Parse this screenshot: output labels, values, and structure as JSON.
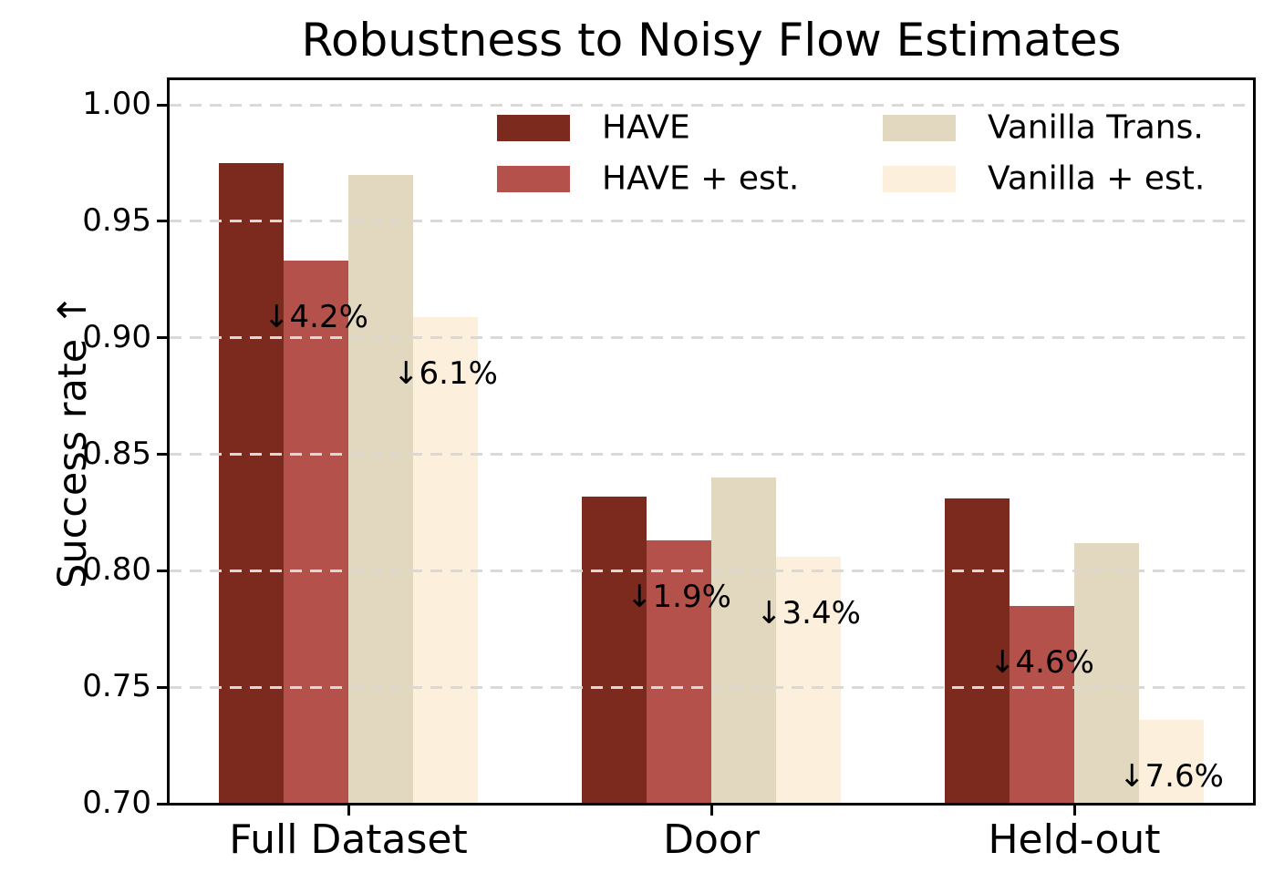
{
  "chart_data": {
    "type": "bar",
    "title": "Robustness to Noisy Flow Estimates",
    "ylabel": "Success rate ↑",
    "xlabel": "",
    "categories": [
      "Full Dataset",
      "Door",
      "Held-out"
    ],
    "series": [
      {
        "name": "HAVE",
        "color": "#7c2a1e",
        "values": [
          0.975,
          0.832,
          0.831
        ]
      },
      {
        "name": "HAVE + est.",
        "color": "#b5514b",
        "values": [
          0.933,
          0.813,
          0.785
        ]
      },
      {
        "name": "Vanilla Trans.",
        "color": "#e2d7bf",
        "values": [
          0.97,
          0.84,
          0.812
        ]
      },
      {
        "name": "Vanilla + est.",
        "color": "#fcefdc",
        "values": [
          0.909,
          0.806,
          0.736
        ]
      }
    ],
    "annotations": [
      {
        "category_index": 0,
        "series_index": 1,
        "text": "↓4.2%"
      },
      {
        "category_index": 0,
        "series_index": 3,
        "text": "↓6.1%"
      },
      {
        "category_index": 1,
        "series_index": 1,
        "text": "↓1.9%"
      },
      {
        "category_index": 1,
        "series_index": 3,
        "text": "↓3.4%"
      },
      {
        "category_index": 2,
        "series_index": 1,
        "text": "↓4.6%"
      },
      {
        "category_index": 2,
        "series_index": 3,
        "text": "↓7.6%"
      }
    ],
    "ylim": [
      0.7,
      1.011
    ],
    "ytick_values": [
      0.7,
      0.75,
      0.8,
      0.85,
      0.9,
      0.95,
      1.0
    ],
    "ytick_labels": [
      "0.70",
      "0.75",
      "0.80",
      "0.85",
      "0.90",
      "0.95",
      "1.00"
    ],
    "grid": "horizontal-dashed",
    "grid_above_bars": true,
    "legend_position": "upper-center-inside",
    "legend_columns": 2
  },
  "colors": {
    "background": "#ffffff",
    "axis": "#000000",
    "grid": "#d9d9d9",
    "text": "#000000"
  }
}
